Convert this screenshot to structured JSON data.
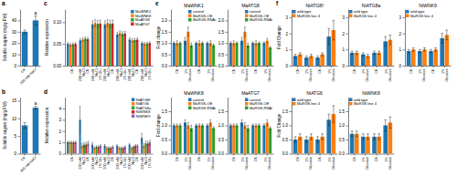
{
  "chart_data": [
    {
      "type": "bar",
      "ylabel": "Soluble sugars (mg/g FW)",
      "categories": [
        "CK",
        "200 mM NaCl"
      ],
      "values": [
        30,
        40
      ],
      "errors": [
        1.5,
        4
      ],
      "ylim": [
        0,
        50
      ],
      "yticks": [
        0,
        10,
        20,
        30,
        40
      ],
      "annotations": [
        {
          "text": "a"
        },
        {
          "text": "a",
          "category": "200 mM NaCl"
        }
      ]
    },
    {
      "type": "bar",
      "ylabel": "Soluble sugars (mg/g FW)",
      "categories": [
        "CK",
        "300 mM NaCl"
      ],
      "values": [
        8,
        13
      ],
      "errors": [
        0.8,
        0.4
      ],
      "ylim": [
        0,
        16
      ],
      "yticks": [
        0,
        5,
        10,
        15
      ],
      "annotations": [
        {
          "text": "b"
        },
        {
          "text": "a",
          "category": "300 mM NaCl"
        }
      ]
    },
    {
      "type": "bar",
      "ylabel": "Relative expression",
      "categories": [
        "CK",
        "200 mM\nNaCl\nCK",
        "200 mM\nNaCl\n1% Glu",
        "200 mM\nNaCl\nCK",
        "200 mM\nNaCl\n1% Glu",
        "200 mM\nNaCl\nCK",
        "200 mM\nNaCl\n1% Glu"
      ],
      "series": [
        {
          "name": "MaWNK1",
          "values": [
            0.05,
            0.058,
            0.095,
            0.095,
            0.072,
            0.06,
            0.052
          ],
          "errors": [
            0.003,
            0.004,
            0.008,
            0.008,
            0.005,
            0.004,
            0.003
          ]
        },
        {
          "name": "MaWNK8",
          "values": [
            0.048,
            0.06,
            0.098,
            0.098,
            0.075,
            0.058,
            0.05
          ],
          "errors": [
            0.003,
            0.004,
            0.008,
            0.008,
            0.005,
            0.004,
            0.003
          ]
        },
        {
          "name": "MaATG8",
          "values": [
            0.049,
            0.062,
            0.096,
            0.096,
            0.073,
            0.059,
            0.051
          ],
          "errors": [
            0.003,
            0.004,
            0.008,
            0.008,
            0.005,
            0.004,
            0.003
          ]
        },
        {
          "name": "MaATG7",
          "values": [
            0.05,
            0.061,
            0.097,
            0.097,
            0.074,
            0.06,
            0.052
          ],
          "errors": [
            0.003,
            0.004,
            0.008,
            0.008,
            0.005,
            0.004,
            0.003
          ]
        }
      ],
      "ylim": [
        0,
        0.13
      ],
      "yticks": [
        {
          "value": 0,
          "label": "0.00"
        },
        0.05,
        {
          "value": 0.1,
          "label": "0.10"
        }
      ],
      "legend": "upper right",
      "annotations": [
        {
          "text": "c"
        }
      ]
    },
    {
      "type": "bar",
      "ylabel": "Relative expression",
      "categories": [
        "CK",
        "200 mM\nNaCl\nCK",
        "200 mM\nNaCl\n1% Glu",
        "200 mM\nNaCl\nCK",
        "200 mM\nNaCl\n1% Glu",
        "200 mM\nNaCl\nCK",
        "200 mM\nNaCl\n1% Glu"
      ],
      "series": [
        {
          "name": "NtATG8f",
          "values": [
            1.0,
            3.0,
            0.8,
            0.7,
            0.7,
            0.8,
            1.4
          ],
          "errors": [
            0.1,
            1.2,
            0.2,
            0.1,
            0.1,
            0.1,
            0.4
          ]
        },
        {
          "name": "NtATG6",
          "values": [
            1.0,
            0.7,
            0.5,
            0.5,
            0.5,
            0.5,
            0.7
          ],
          "errors": [
            0.1,
            0.2,
            0.1,
            0.1,
            0.1,
            0.1,
            0.2
          ]
        },
        {
          "name": "NtATG8a",
          "values": [
            1.0,
            0.8,
            0.6,
            0.5,
            0.5,
            0.6,
            0.9
          ],
          "errors": [
            0.1,
            0.2,
            0.1,
            0.1,
            0.1,
            0.1,
            0.2
          ]
        },
        {
          "name": "NtWNK8",
          "values": [
            1.0,
            0.8,
            0.6,
            0.5,
            0.5,
            0.7,
            0.9
          ],
          "errors": [
            0.1,
            0.2,
            0.1,
            0.1,
            0.1,
            0.1,
            0.2
          ]
        },
        {
          "name": "NtWNK9",
          "values": [
            1.0,
            0.9,
            0.7,
            0.6,
            0.6,
            0.7,
            1.0
          ],
          "errors": [
            0.1,
            0.2,
            0.1,
            0.1,
            0.1,
            0.1,
            0.2
          ]
        }
      ],
      "ylim": [
        0,
        5
      ],
      "yticks": [
        0,
        1,
        2,
        3,
        4
      ],
      "legend": "upper right",
      "annotations": [
        {
          "text": "d"
        }
      ]
    },
    {
      "type": "bar",
      "title": "MaWNK1",
      "ylabel": "Fold change",
      "categories": [
        "CK",
        "1%\nGlucose",
        "CK",
        "1%\nGlucose"
      ],
      "series": [
        {
          "name": "control",
          "values": [
            1.0,
            1.1,
            1.0,
            1.0
          ],
          "errors": [
            0.05,
            0.15,
            0.05,
            0.05
          ]
        },
        {
          "name": "MaRGS-OE",
          "values": [
            1.0,
            1.5,
            1.0,
            1.0
          ],
          "errors": [
            0.1,
            0.2,
            0.1,
            0.1
          ]
        },
        {
          "name": "MaRGS-RNAi",
          "values": [
            1.0,
            0.9,
            1.0,
            0.9
          ],
          "errors": [
            0.05,
            0.1,
            0.05,
            0.05
          ]
        }
      ],
      "ylim": [
        0,
        2.5
      ],
      "yticks": [
        {
          "value": 0,
          "label": "0.0"
        },
        0.5,
        {
          "value": 1,
          "label": "1.0"
        },
        1.5,
        {
          "value": 2,
          "label": "2.0"
        }
      ],
      "legend": "upper right",
      "annotations": [
        {
          "text": "e"
        }
      ]
    },
    {
      "type": "bar",
      "title": "MaATG8",
      "categories": [
        "CK",
        "1%\nGlucose",
        "CK",
        "1%\nGlucose"
      ],
      "series": [
        {
          "name": "control",
          "values": [
            1.0,
            1.1,
            1.0,
            1.0
          ],
          "errors": [
            0.05,
            0.15,
            0.05,
            0.05
          ]
        },
        {
          "name": "MaRGS-OE",
          "values": [
            1.0,
            1.5,
            1.0,
            1.1
          ],
          "errors": [
            0.1,
            0.2,
            0.1,
            0.1
          ]
        },
        {
          "name": "MaRGS-RNAi",
          "values": [
            1.0,
            0.9,
            1.0,
            0.8
          ],
          "errors": [
            0.05,
            0.1,
            0.05,
            0.05
          ]
        }
      ],
      "ylim": [
        0,
        2.5
      ],
      "yticks": [
        {
          "value": 0,
          "label": "0.0"
        },
        0.5,
        {
          "value": 1,
          "label": "1.0"
        },
        1.5,
        {
          "value": 2,
          "label": "2.0"
        }
      ],
      "legend": "upper right"
    },
    {
      "type": "bar",
      "title": "MaWNK8",
      "ylabel": "Fold change",
      "categories": [
        "CK",
        "1%\nGlucose",
        "CK",
        "1%\nGlucose"
      ],
      "series": [
        {
          "name": "control",
          "values": [
            1.0,
            1.1,
            1.0,
            1.0
          ],
          "errors": [
            0.05,
            0.1,
            0.05,
            0.05
          ]
        },
        {
          "name": "MaRGS-OE",
          "values": [
            1.0,
            1.0,
            1.0,
            1.1
          ],
          "errors": [
            0.05,
            0.1,
            0.05,
            0.1
          ]
        },
        {
          "name": "MaRGS-RNAi",
          "values": [
            1.0,
            0.9,
            1.0,
            0.9
          ],
          "errors": [
            0.05,
            0.1,
            0.05,
            0.05
          ]
        }
      ],
      "ylim": [
        0,
        2
      ],
      "yticks": [
        {
          "value": 0,
          "label": "0.0"
        },
        0.5,
        {
          "value": 1,
          "label": "1.0"
        },
        1.5
      ],
      "legend": "upper right"
    },
    {
      "type": "bar",
      "title": "MaATG7",
      "categories": [
        "CK",
        "1%\nGlucose",
        "CK",
        "1%\nGlucose"
      ],
      "series": [
        {
          "name": "control",
          "values": [
            1.0,
            1.1,
            1.0,
            1.0
          ],
          "errors": [
            0.05,
            0.1,
            0.05,
            0.05
          ]
        },
        {
          "name": "MaRGS-OE",
          "values": [
            1.0,
            1.0,
            1.0,
            1.1
          ],
          "errors": [
            0.05,
            0.1,
            0.05,
            0.1
          ]
        },
        {
          "name": "MaRGS-RNAi",
          "values": [
            1.0,
            0.9,
            1.0,
            0.9
          ],
          "errors": [
            0.05,
            0.1,
            0.05,
            0.05
          ]
        }
      ],
      "ylim": [
        0,
        2
      ],
      "yticks": [
        {
          "value": 0,
          "label": "0.0"
        },
        0.5,
        {
          "value": 1,
          "label": "1.0"
        },
        1.5
      ],
      "legend": "upper right"
    },
    {
      "type": "bar",
      "title": "NtATG8f",
      "ylabel": "Fold Change",
      "categories": [
        "CK",
        "1%\nGlucose",
        "CK",
        "1%\nGlucose"
      ],
      "series": [
        {
          "name": "wild type",
          "values": [
            0.6,
            0.5,
            0.5,
            1.8
          ],
          "errors": [
            0.1,
            0.1,
            0.1,
            0.5
          ]
        },
        {
          "name": "MaRGS line 4",
          "values": [
            0.7,
            0.6,
            0.7,
            2.2
          ],
          "errors": [
            0.1,
            0.1,
            0.1,
            0.6
          ]
        }
      ],
      "ylim": [
        0,
        3.5
      ],
      "yticks": [
        0,
        1,
        2,
        3
      ],
      "legend": "upper left",
      "annotations": [
        {
          "text": "f"
        }
      ]
    },
    {
      "type": "bar",
      "title": "NtATG8a",
      "categories": [
        "CK",
        "1%\nGlucose",
        "CK",
        "1%\nGlucose"
      ],
      "series": [
        {
          "name": "wild type",
          "values": [
            0.8,
            0.7,
            0.8,
            1.5
          ],
          "errors": [
            0.1,
            0.1,
            0.1,
            0.3
          ]
        },
        {
          "name": "MaRGS line 4",
          "values": [
            0.8,
            0.6,
            0.8,
            1.6
          ],
          "errors": [
            0.1,
            0.1,
            0.1,
            0.3
          ]
        }
      ],
      "ylim": [
        0,
        3.5
      ],
      "yticks": [
        0,
        1,
        2,
        3
      ],
      "legend": "upper left"
    },
    {
      "type": "bar",
      "title": "NtWNK9",
      "categories": [
        "CK",
        "1%\nGlucose",
        "CK",
        "1%\nGlucose"
      ],
      "series": [
        {
          "name": "wild type",
          "values": [
            0.9,
            0.9,
            0.9,
            1.7
          ],
          "errors": [
            0.1,
            0.1,
            0.1,
            0.3
          ]
        },
        {
          "name": "MaRGS line 4",
          "values": [
            1.0,
            1.0,
            1.0,
            1.9
          ],
          "errors": [
            0.1,
            0.1,
            0.1,
            0.3
          ]
        }
      ],
      "ylim": [
        0,
        3.5
      ],
      "yticks": [
        0,
        1,
        2,
        3
      ],
      "legend": "upper left"
    },
    {
      "type": "bar",
      "title": "NtATG6",
      "ylabel": "Fold Change",
      "categories": [
        "CK",
        "1%\nGlucose",
        "CK",
        "1%\nGlucose"
      ],
      "series": [
        {
          "name": "wild type",
          "values": [
            0.5,
            0.5,
            0.5,
            1.2
          ],
          "errors": [
            0.1,
            0.1,
            0.1,
            0.2
          ]
        },
        {
          "name": "MaRGS line 4",
          "values": [
            0.6,
            0.6,
            0.6,
            1.4
          ],
          "errors": [
            0.1,
            0.1,
            0.1,
            0.3
          ]
        }
      ],
      "ylim": [
        0,
        2
      ],
      "yticks": [
        {
          "value": 0,
          "label": "0.0"
        },
        0.5,
        {
          "value": 1,
          "label": "1.0"
        },
        1.5
      ],
      "legend": "upper left"
    },
    {
      "type": "bar",
      "title": "NtWNK8",
      "categories": [
        "CK",
        "1%\nGlucose",
        "CK",
        "1%\nGlucose"
      ],
      "series": [
        {
          "name": "wild type",
          "values": [
            0.7,
            0.6,
            0.6,
            1.0
          ],
          "errors": [
            0.1,
            0.1,
            0.1,
            0.2
          ]
        },
        {
          "name": "MaRGS line 4",
          "values": [
            0.7,
            0.6,
            0.6,
            1.1
          ],
          "errors": [
            0.1,
            0.1,
            0.1,
            0.2
          ]
        }
      ],
      "ylim": [
        0,
        2
      ],
      "yticks": [
        {
          "value": 0,
          "label": "0.0"
        },
        0.5,
        {
          "value": 1,
          "label": "1.0"
        },
        1.5
      ],
      "legend": "upper left"
    }
  ]
}
